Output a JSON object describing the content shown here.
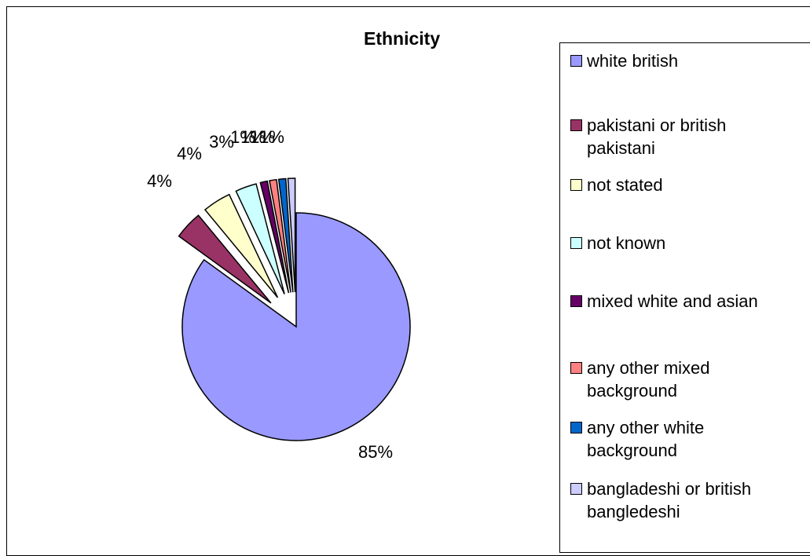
{
  "chart_data": {
    "type": "pie",
    "title": "Ethnicity",
    "slices": [
      {
        "label": "white british",
        "value": 85,
        "display": "85%",
        "color": "#9999ff"
      },
      {
        "label": "pakistani or british pakistani",
        "value": 4,
        "display": "4%",
        "color": "#993366"
      },
      {
        "label": "not stated",
        "value": 4,
        "display": "4%",
        "color": "#ffffcc"
      },
      {
        "label": "not known",
        "value": 3,
        "display": "3%",
        "color": "#ccffff"
      },
      {
        "label": "mixed white and asian",
        "value": 1,
        "display": "1%",
        "color": "#660066"
      },
      {
        "label": "any other mixed background",
        "value": 1,
        "display": "1%",
        "color": "#ff8080"
      },
      {
        "label": "any other white background",
        "value": 1,
        "display": "1%",
        "color": "#0066cc"
      },
      {
        "label": "bangladeshi or british bangledeshi",
        "value": 1,
        "display": "1%",
        "color": "#ccccff"
      }
    ],
    "legend_position": "right"
  },
  "legend": {
    "items": [
      {
        "lines": [
          "white british"
        ],
        "color": "#9999ff"
      },
      {
        "lines": [
          "pakistani or british",
          "pakistani"
        ],
        "color": "#993366"
      },
      {
        "lines": [
          "not stated"
        ],
        "color": "#ffffcc"
      },
      {
        "lines": [
          "not known"
        ],
        "color": "#ccffff"
      },
      {
        "lines": [
          "mixed white and asian"
        ],
        "color": "#660066"
      },
      {
        "lines": [
          "any other mixed",
          "background"
        ],
        "color": "#ff8080"
      },
      {
        "lines": [
          "any other white",
          "background"
        ],
        "color": "#0066cc"
      },
      {
        "lines": [
          "bangladeshi or british",
          "bangledeshi"
        ],
        "color": "#ccccff"
      }
    ]
  }
}
